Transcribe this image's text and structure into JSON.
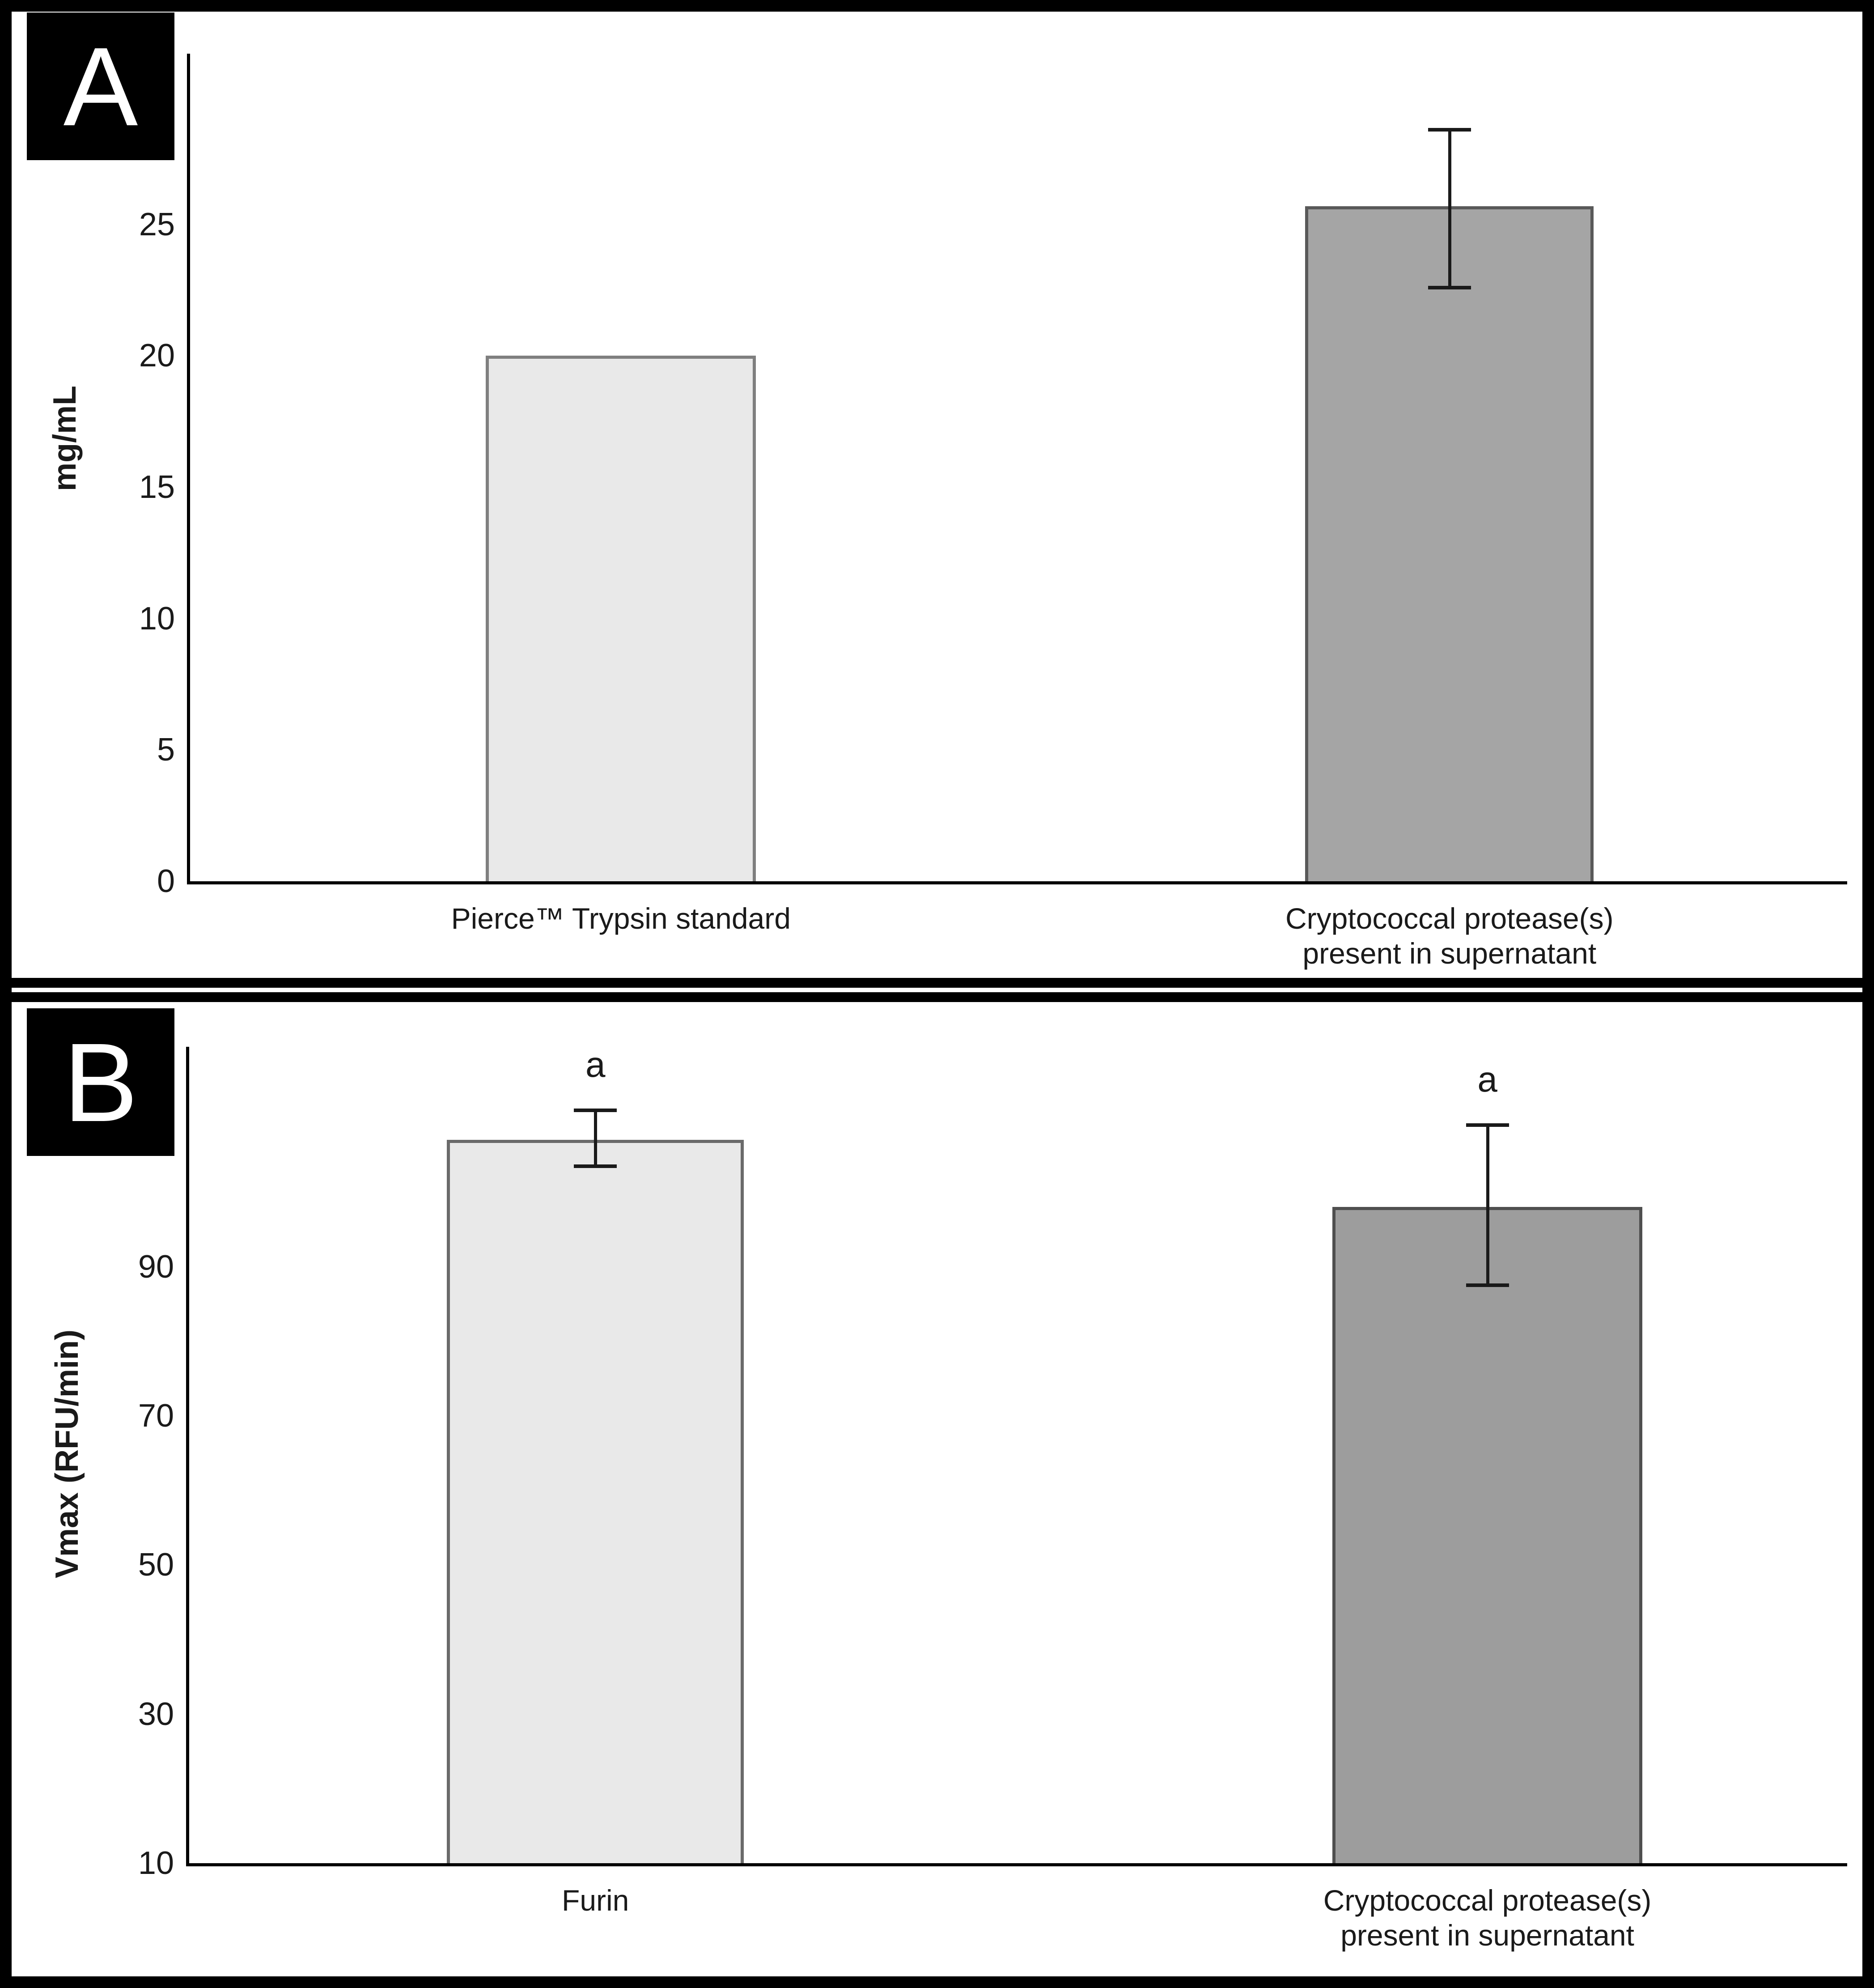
{
  "figure": {
    "panels": [
      {
        "letter": "A",
        "y_axis_title": "mg/mL"
      },
      {
        "letter": "B",
        "y_axis_title": "Vmax (RFU/min)"
      }
    ]
  },
  "chart_data": [
    {
      "type": "bar",
      "panel": "A",
      "title": "",
      "xlabel": "",
      "ylabel": "mg/mL",
      "ylim": [
        0,
        31.5
      ],
      "yticks": [
        0,
        5,
        10,
        15,
        20,
        25,
        30
      ],
      "grid": false,
      "legend_position": "none",
      "categories": [
        "Pierce™ Trypsin standard",
        "Cryptococcal protease(s)\npresent in supernatant"
      ],
      "values": [
        20,
        25.7
      ],
      "errors": [
        null,
        {
          "low": 22.6,
          "high": 28.6
        }
      ],
      "annotations": [
        null,
        null
      ],
      "bar_fill_colors": [
        "#e9e9e9",
        "#a5a5a5"
      ],
      "bar_border_colors": [
        "#7f7f7f",
        "#595959"
      ],
      "bar_centers_frac": [
        0.26,
        0.76
      ],
      "bar_widths_frac": [
        0.163,
        0.174
      ]
    },
    {
      "type": "bar",
      "panel": "B",
      "title": "",
      "xlabel": "",
      "ylabel": "Vmax (RFU/min)",
      "ylim": [
        10,
        119.5
      ],
      "yticks": [
        10,
        30,
        50,
        70,
        90,
        110
      ],
      "grid": false,
      "legend_position": "none",
      "categories": [
        "Furin",
        "Cryptococcal protease(s)\npresent in supernatant"
      ],
      "values": [
        107,
        98
      ],
      "errors": [
        {
          "low": 103.5,
          "high": 111
        },
        {
          "low": 87.5,
          "high": 109
        }
      ],
      "annotations": [
        "a",
        "a"
      ],
      "bar_fill_colors": [
        "#e9e9e9",
        "#9d9d9d"
      ],
      "bar_border_colors": [
        "#6a6a6a",
        "#4f4f4f"
      ],
      "bar_centers_frac": [
        0.245,
        0.783
      ],
      "bar_widths_frac": [
        0.179,
        0.187
      ]
    }
  ]
}
